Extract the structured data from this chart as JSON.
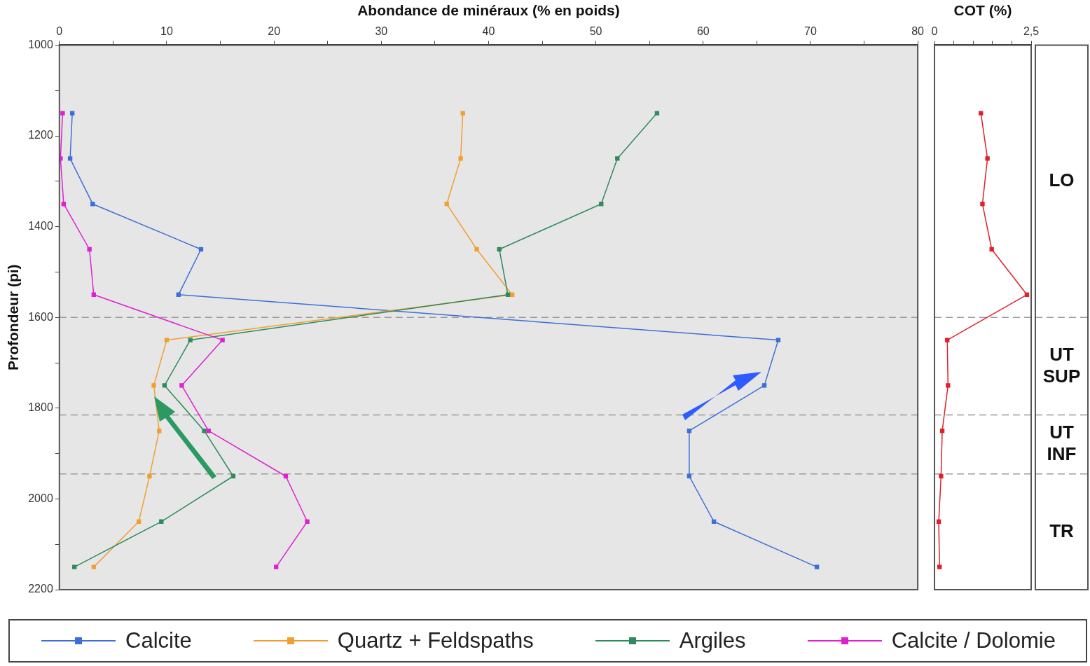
{
  "chart_data": [
    {
      "type": "line",
      "xlabel": "Abondance de minéraux (% en poids)",
      "ylabel": "Profondeur (pi)",
      "xlim": [
        0,
        80
      ],
      "xticks": [
        0,
        {
          "value": 5,
          "label": null
        },
        10,
        {
          "value": 15,
          "label": null
        },
        20,
        {
          "value": 25,
          "label": null
        },
        30,
        {
          "value": 35,
          "label": null
        },
        40,
        {
          "value": 45,
          "label": null
        },
        50,
        {
          "value": 55,
          "label": null
        },
        60,
        {
          "value": 65,
          "label": null
        },
        70,
        {
          "value": 75,
          "label": null
        },
        80
      ],
      "ylim": [
        2200,
        1000
      ],
      "yticks": [
        1000,
        {
          "value": 1100,
          "label": null
        },
        1200,
        {
          "value": 1300,
          "label": null
        },
        1400,
        {
          "value": 1500,
          "label": null
        },
        1600,
        {
          "value": 1700,
          "label": null
        },
        1800,
        {
          "value": 1900,
          "label": null
        },
        2000,
        {
          "value": 2100,
          "label": null
        },
        2200
      ],
      "grid": false,
      "legend": "bottom",
      "marker": "square",
      "line_style": "solid",
      "series": [
        {
          "name": "Calcite",
          "color": "#3d6fd8",
          "x": [
            1.2,
            1.0,
            3.1,
            13.2,
            11.1,
            67.0,
            65.7,
            58.7,
            58.7,
            61.0,
            70.6
          ],
          "values": [
            1150,
            1250,
            1350,
            1450,
            1550,
            1650,
            1750,
            1850,
            1950,
            2050,
            2150
          ]
        },
        {
          "name": "Quartz + Feldspaths",
          "color": "#f0a030",
          "x": [
            37.6,
            37.4,
            36.1,
            38.9,
            42.2,
            10.0,
            8.8,
            9.3,
            8.4,
            7.4,
            3.2
          ],
          "values": [
            1150,
            1250,
            1350,
            1450,
            1550,
            1650,
            1750,
            1850,
            1950,
            2050,
            2150
          ]
        },
        {
          "name": "Argiles",
          "color": "#2e8b5e",
          "x": [
            55.7,
            52.0,
            50.5,
            41.0,
            41.8,
            12.2,
            9.8,
            13.5,
            16.2,
            9.5,
            1.4
          ],
          "values": [
            1150,
            1250,
            1350,
            1450,
            1550,
            1650,
            1750,
            1850,
            1950,
            2050,
            2150
          ]
        },
        {
          "name": "Calcite / Dolomie",
          "color": "#e020d0",
          "x": [
            0.3,
            0.1,
            0.4,
            2.8,
            3.2,
            15.2,
            11.4,
            13.9,
            21.1,
            23.1,
            20.2
          ],
          "values": [
            1150,
            1250,
            1350,
            1450,
            1550,
            1650,
            1750,
            1850,
            1950,
            2050,
            2150
          ]
        }
      ],
      "ref_lines": [
        {
          "axis": "y",
          "value": 1600,
          "color": "#999999",
          "line_style": "dashed"
        },
        {
          "axis": "y",
          "value": 1815,
          "color": "#999999",
          "line_style": "dashed"
        },
        {
          "axis": "y",
          "value": 1945,
          "color": "#999999",
          "line_style": "dashed"
        }
      ]
    },
    {
      "type": "line",
      "xlabel": "COT (%)",
      "xlim": [
        0,
        2.5
      ],
      "xticks": [
        0,
        {
          "value": 0.5,
          "label": null
        },
        {
          "value": 1,
          "label": null
        },
        {
          "value": 1.5,
          "label": null
        },
        {
          "value": 2,
          "label": null
        },
        {
          "value": 2.5,
          "label": "2,5"
        }
      ],
      "ylim": [
        2200,
        1000
      ],
      "tick_labels": "x",
      "grid": false,
      "marker": "square",
      "line_style": "solid",
      "series": [
        {
          "color": "#e0202a",
          "x": [
            1.2,
            1.37,
            1.24,
            1.48,
            2.39,
            0.33,
            0.35,
            0.2,
            0.17,
            0.11,
            0.13
          ],
          "values": [
            1150,
            1250,
            1350,
            1450,
            1550,
            1650,
            1750,
            1850,
            1950,
            2050,
            2150
          ]
        }
      ],
      "ref_lines": [
        {
          "axis": "y",
          "value": 1600,
          "color": "#999999",
          "line_style": "dashed"
        },
        {
          "axis": "y",
          "value": 1815,
          "color": "#999999",
          "line_style": "dashed"
        },
        {
          "axis": "y",
          "value": 1945,
          "color": "#999999",
          "line_style": "dashed"
        }
      ],
      "annotations": [
        "LO",
        "UT SUP",
        "UT INF",
        "TR"
      ]
    }
  ]
}
